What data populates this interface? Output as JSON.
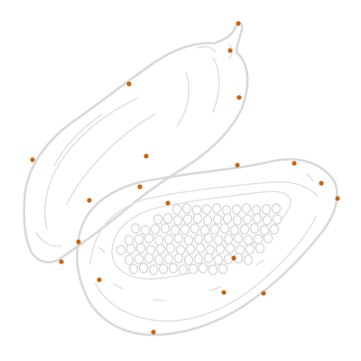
{
  "image": {
    "subject_icon": "papaya-icon",
    "colors": {
      "background": "#ffffff",
      "line": "#d9d9d9",
      "marker": "#c8650f"
    }
  }
}
